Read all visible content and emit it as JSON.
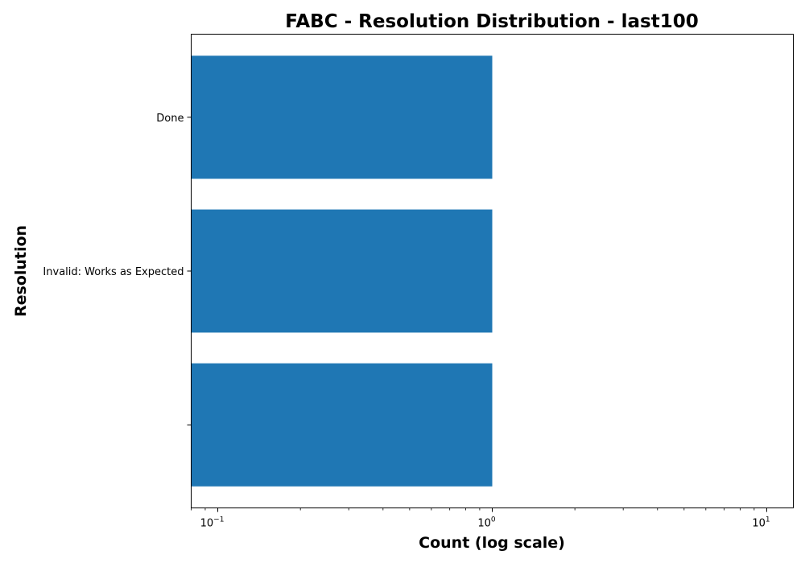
{
  "chart_data": {
    "type": "bar",
    "orientation": "horizontal",
    "title": "FABC - Resolution Distribution - last100",
    "xlabel": "Count (log scale)",
    "ylabel": "Resolution",
    "x_scale": "log",
    "xlim": [
      0.08,
      12.5
    ],
    "x_ticks": [
      {
        "base": "10",
        "exp": "−1",
        "value": 0.1
      },
      {
        "base": "10",
        "exp": "0",
        "value": 1
      },
      {
        "base": "10",
        "exp": "1",
        "value": 10
      }
    ],
    "categories": [
      "Done",
      "Invalid: Works as Expected",
      ""
    ],
    "values": [
      1,
      1,
      1
    ],
    "color": "#1f77b4",
    "grid": false,
    "legend": false
  }
}
